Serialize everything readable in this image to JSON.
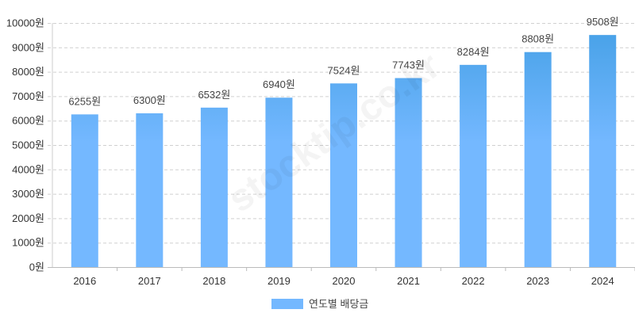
{
  "chart_data": {
    "type": "bar",
    "categories": [
      "2016",
      "2017",
      "2018",
      "2019",
      "2020",
      "2021",
      "2022",
      "2023",
      "2024"
    ],
    "series": [
      {
        "name": "연도별 배당금",
        "values": [
          6255,
          6300,
          6532,
          6940,
          7524,
          7743,
          8284,
          8808,
          9508
        ]
      }
    ],
    "data_labels": [
      "6255원",
      "6300원",
      "6532원",
      "6940원",
      "7524원",
      "7743원",
      "8284원",
      "8808원",
      "9508원"
    ],
    "y_ticks": [
      "0원",
      "1000원",
      "2000원",
      "3000원",
      "4000원",
      "5000원",
      "6000원",
      "7000원",
      "8000원",
      "9000원",
      "10000원"
    ],
    "ylim": [
      0,
      10000
    ],
    "unit": "원",
    "grid": true,
    "legend_position": "bottom",
    "colors": {
      "bar": "#74b8ff",
      "bar_top": "#45a0e6",
      "grid": "#d0d0d0"
    },
    "watermark": "stocktip.co.kr"
  }
}
